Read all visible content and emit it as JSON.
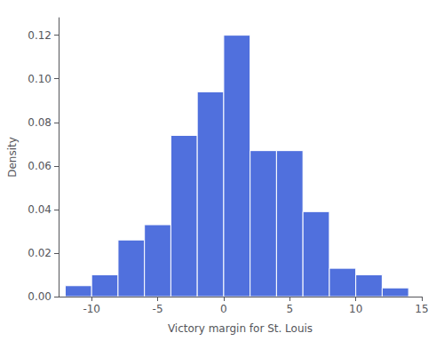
{
  "chart_data": {
    "type": "histogram",
    "bins": [
      -12,
      -10,
      -8,
      -6,
      -4,
      -2,
      0,
      2,
      4,
      6,
      8,
      10,
      12,
      14
    ],
    "values": [
      0.005,
      0.01,
      0.026,
      0.033,
      0.074,
      0.094,
      0.12,
      0.067,
      0.067,
      0.039,
      0.013,
      0.01,
      0.004
    ],
    "xlabel": "Victory margin for St. Louis",
    "ylabel": "Density",
    "xlim": [
      -12.5,
      15
    ],
    "ylim": [
      0,
      0.128
    ],
    "xticks": [
      -10,
      -5,
      0,
      5,
      10,
      15
    ],
    "yticks": [
      {
        "value": 0,
        "label": "0.00"
      },
      0.02,
      0.04,
      0.06,
      0.08,
      {
        "value": 0.1,
        "label": "0.10"
      },
      0.12
    ],
    "grid": false
  }
}
